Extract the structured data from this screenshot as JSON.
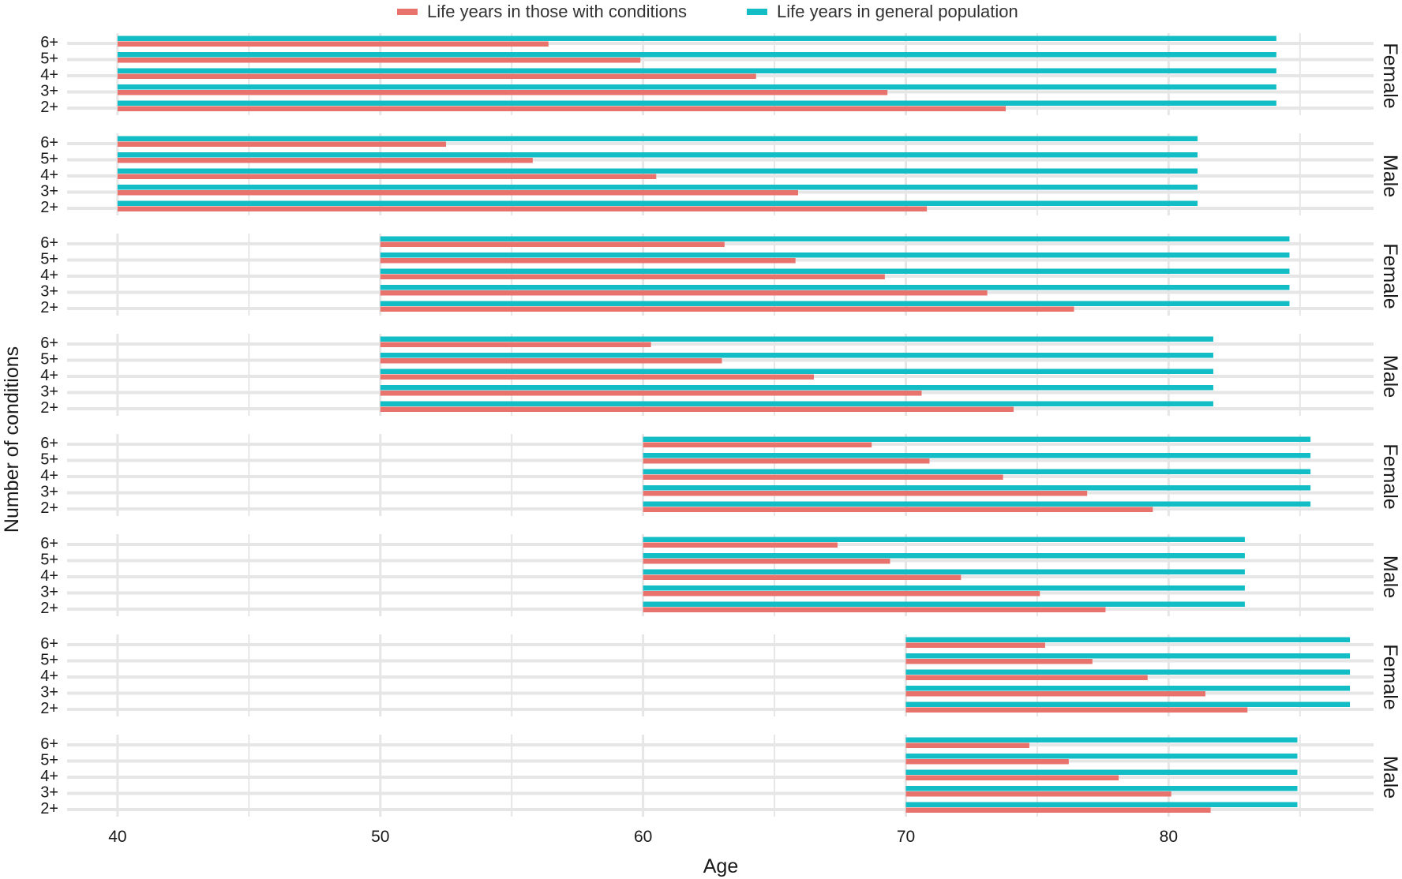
{
  "legend": {
    "with_conditions": "Life years in those with conditions",
    "general_population": "Life years in general population"
  },
  "colors": {
    "with_conditions": "#E8726C",
    "general_population": "#12BDC5",
    "grid": "#E6E6E6"
  },
  "chart_data": {
    "type": "bar",
    "orientation": "horizontal",
    "xlabel": "Age",
    "ylabel": "Number of conditions",
    "xlim": [
      37.6,
      87.8
    ],
    "xticks": [
      40,
      50,
      60,
      70,
      80
    ],
    "grid": true,
    "legend_position": "top",
    "categories": [
      "6+",
      "5+",
      "4+",
      "3+",
      "2+"
    ],
    "series_names": [
      "Life years in those with conditions",
      "Life years in general population"
    ],
    "panels": [
      {
        "strip": "Female",
        "start_age": 40,
        "general_population": [
          84.1,
          84.1,
          84.1,
          84.1,
          84.1
        ],
        "with_conditions": [
          56.4,
          59.9,
          64.3,
          69.3,
          73.8
        ]
      },
      {
        "strip": "Male",
        "start_age": 40,
        "general_population": [
          81.1,
          81.1,
          81.1,
          81.1,
          81.1
        ],
        "with_conditions": [
          52.5,
          55.8,
          60.5,
          65.9,
          70.8
        ]
      },
      {
        "strip": "Female",
        "start_age": 50,
        "general_population": [
          84.6,
          84.6,
          84.6,
          84.6,
          84.6
        ],
        "with_conditions": [
          63.1,
          65.8,
          69.2,
          73.1,
          76.4
        ]
      },
      {
        "strip": "Male",
        "start_age": 50,
        "general_population": [
          81.7,
          81.7,
          81.7,
          81.7,
          81.7
        ],
        "with_conditions": [
          60.3,
          63.0,
          66.5,
          70.6,
          74.1
        ]
      },
      {
        "strip": "Female",
        "start_age": 60,
        "general_population": [
          85.4,
          85.4,
          85.4,
          85.4,
          85.4
        ],
        "with_conditions": [
          68.7,
          70.9,
          73.7,
          76.9,
          79.4
        ]
      },
      {
        "strip": "Male",
        "start_age": 60,
        "general_population": [
          82.9,
          82.9,
          82.9,
          82.9,
          82.9
        ],
        "with_conditions": [
          67.4,
          69.4,
          72.1,
          75.1,
          77.6
        ]
      },
      {
        "strip": "Female",
        "start_age": 70,
        "general_population": [
          86.9,
          86.9,
          86.9,
          86.9,
          86.9
        ],
        "with_conditions": [
          75.3,
          77.1,
          79.2,
          81.4,
          83.0
        ]
      },
      {
        "strip": "Male",
        "start_age": 70,
        "general_population": [
          84.9,
          84.9,
          84.9,
          84.9,
          84.9
        ],
        "with_conditions": [
          74.7,
          76.2,
          78.1,
          80.1,
          81.6
        ]
      }
    ]
  }
}
